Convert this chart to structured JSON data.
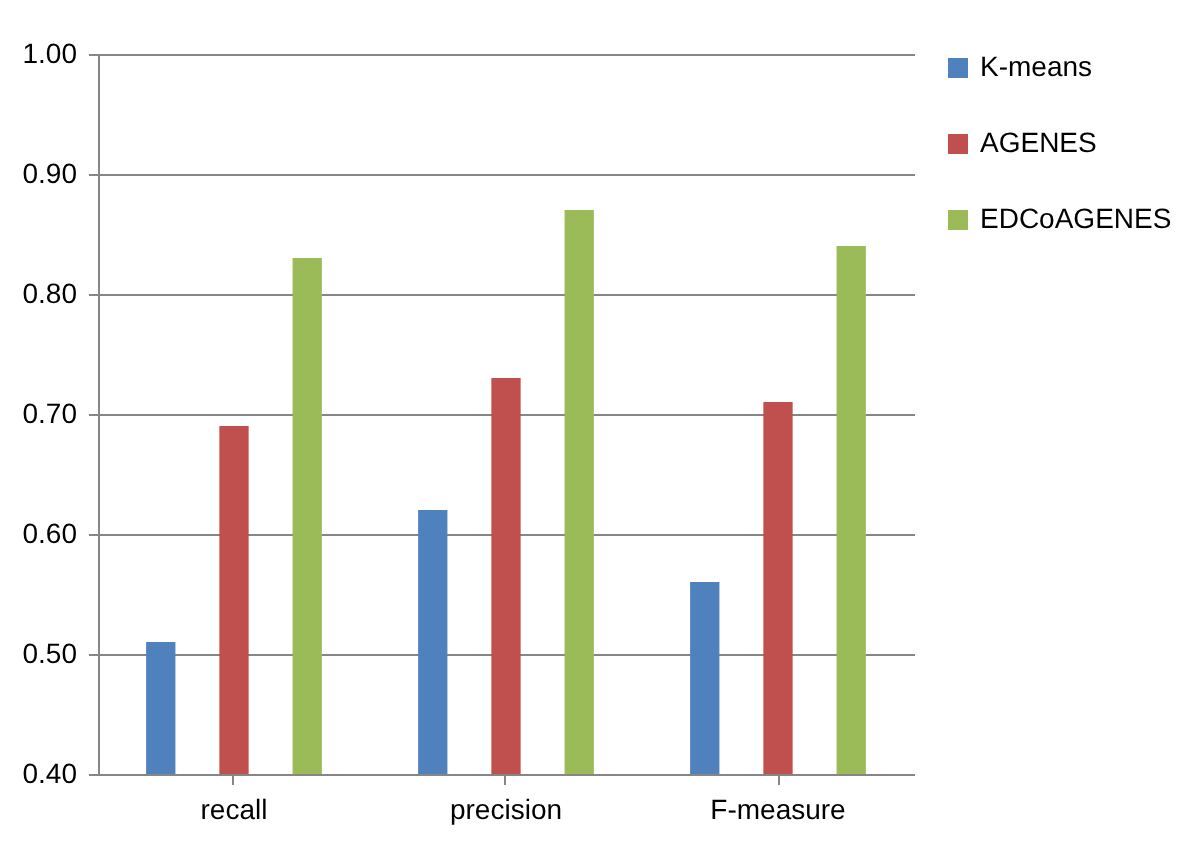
{
  "chart_data": {
    "type": "bar",
    "categories": [
      "recall",
      "precision",
      "F-measure"
    ],
    "series": [
      {
        "name": "K-means",
        "color": "#4f81bd",
        "values": [
          0.51,
          0.62,
          0.56
        ]
      },
      {
        "name": "AGENES",
        "color": "#c0504d",
        "values": [
          0.69,
          0.73,
          0.71
        ]
      },
      {
        "name": "EDCoAGENES",
        "color": "#9bbb59",
        "values": [
          0.83,
          0.87,
          0.84
        ]
      }
    ],
    "ylim": [
      0.4,
      1.0
    ],
    "yticks": [
      {
        "value": 0.4,
        "label": "0.40"
      },
      {
        "value": 0.5,
        "label": "0.50"
      },
      {
        "value": 0.6,
        "label": "0.60"
      },
      {
        "value": 0.7,
        "label": "0.70"
      },
      {
        "value": 0.8,
        "label": "0.80"
      },
      {
        "value": 0.9,
        "label": "0.90"
      },
      {
        "value": 1.0,
        "label": "1.00"
      }
    ],
    "grid": "y",
    "legend": "right"
  }
}
